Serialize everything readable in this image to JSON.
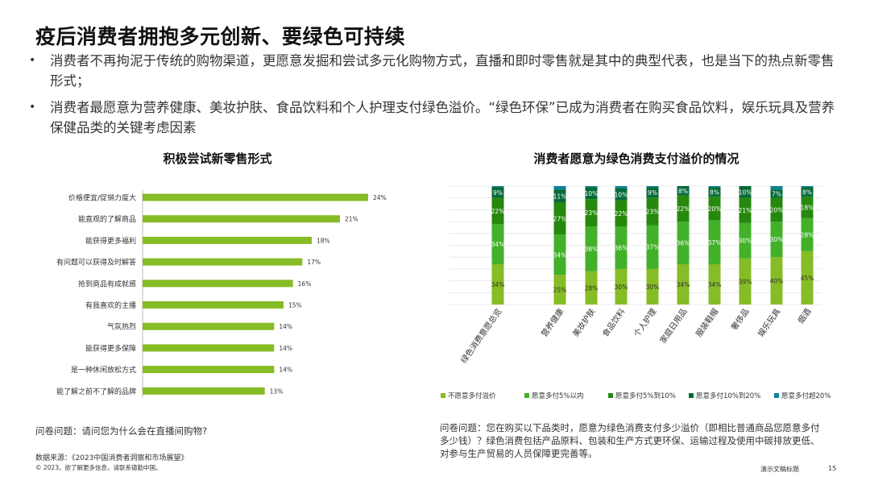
{
  "title": "疫后消费者拥抱多元创新、要绿色可持续",
  "bullets": [
    "消费者不再拘泥于传统的购物渠道，更愿意发掘和尝试多元化购物方式，直播和即时零售就是其中的典型代表，也是当下的热点新零售形式；",
    "消费者最愿意为营养健康、美妆护肤、食品饮料和个人护理支付绿色溢价。“绿色环保”已成为消费者在购买食品饮料，娱乐玩具及营养保健品类的关键考虑因素"
  ],
  "left_subtitle": "积极尝试新零售形式",
  "right_subtitle": "消费者愿意为绿色消费支付溢价的情况",
  "left_question": "问卷问题：请问您为什么会在直播间购物?",
  "right_question": "问卷问题：您在购买以下品类时，愿意为绿色消费支付多少溢价（即相比普通商品您愿意多付多少钱）？绿色消费包括产品原料、包装和生产方式更环保、运输过程及使用中碳排放更低、对参与生产贸易的人员保障更完善等。",
  "source": "数据来源：《2023中国消费者洞察和市场展望》",
  "copyright": "© 2023。欲了解更多信息，请联系德勤中国。",
  "footer_title": "演示文稿标题",
  "page_number": "15",
  "colors": {
    "bar_green": "#86bc25",
    "s1": "#86bc25",
    "s2": "#43b02a",
    "s3": "#26890d",
    "s4": "#046a38",
    "s5": "#0d8390"
  },
  "chart_data": [
    {
      "type": "bar",
      "orientation": "horizontal",
      "title": "积极尝试新零售形式",
      "categories": [
        "价格便宜/促销力度大",
        "能直观的了解商品",
        "能获得更多福利",
        "有问题可以获得及时解答",
        "抢到商品有成就感",
        "有我喜欢的主播",
        "气氛热烈",
        "能获得更多保障",
        "是一种休闲放松方式",
        "能了解之前不了解的品牌"
      ],
      "values": [
        24,
        21,
        18,
        17,
        16,
        15,
        14,
        14,
        14,
        13
      ],
      "value_labels": [
        "24%",
        "21%",
        "18%",
        "17%",
        "16%",
        "15%",
        "14%",
        "14%",
        "14%",
        "13%"
      ],
      "xlim": [
        0,
        30
      ],
      "unit": "%"
    },
    {
      "type": "bar",
      "orientation": "vertical",
      "stacked": true,
      "title": "消费者愿意为绿色消费支付溢价的情况",
      "categories": [
        "绿色消费意愿总览",
        "营养健康",
        "美妆护肤",
        "食品饮料",
        "个人护理",
        "家庭日用品",
        "服装鞋帽",
        "奢侈品",
        "娱乐玩具",
        "烟酒"
      ],
      "series": [
        {
          "name": "不愿意多付溢价",
          "values": [
            34,
            25,
            28,
            30,
            30,
            34,
            34,
            39,
            40,
            45
          ],
          "labels": [
            "34%",
            "25%",
            "28%",
            "30%",
            "30%",
            "34%",
            "34%",
            "39%",
            "40%",
            "45%"
          ]
        },
        {
          "name": "愿意多付5%以内",
          "values": [
            34,
            34,
            38,
            36,
            37,
            36,
            37,
            30,
            30,
            28
          ],
          "labels": [
            "34%",
            "34%",
            "38%",
            "36%",
            "37%",
            "36%",
            "37%",
            "30%",
            "30%",
            "28%"
          ]
        },
        {
          "name": "愿意多付5%到10%",
          "values": [
            22,
            27,
            23,
            22,
            23,
            22,
            20,
            21,
            20,
            18
          ],
          "labels": [
            "22%",
            "27%",
            "23%",
            "22%",
            "23%",
            "22%",
            "20%",
            "21%",
            "20%",
            "18%"
          ]
        },
        {
          "name": "愿意多付10%到20%",
          "values": [
            9,
            11,
            10,
            10,
            9,
            8,
            8,
            10,
            7,
            8
          ],
          "labels": [
            "9%",
            "11%",
            "10%",
            "10%",
            "9%",
            "8%",
            "8%",
            "10%",
            "7%",
            "8%"
          ]
        },
        {
          "name": "愿意多付超20%",
          "values": [
            1,
            3,
            1,
            2,
            1,
            0,
            1,
            0,
            3,
            1
          ],
          "labels": [
            "",
            "",
            "",
            "",
            "",
            "",
            "",
            "",
            "",
            ""
          ]
        }
      ],
      "ylim": [
        0,
        100
      ],
      "legend": "bottom"
    }
  ]
}
